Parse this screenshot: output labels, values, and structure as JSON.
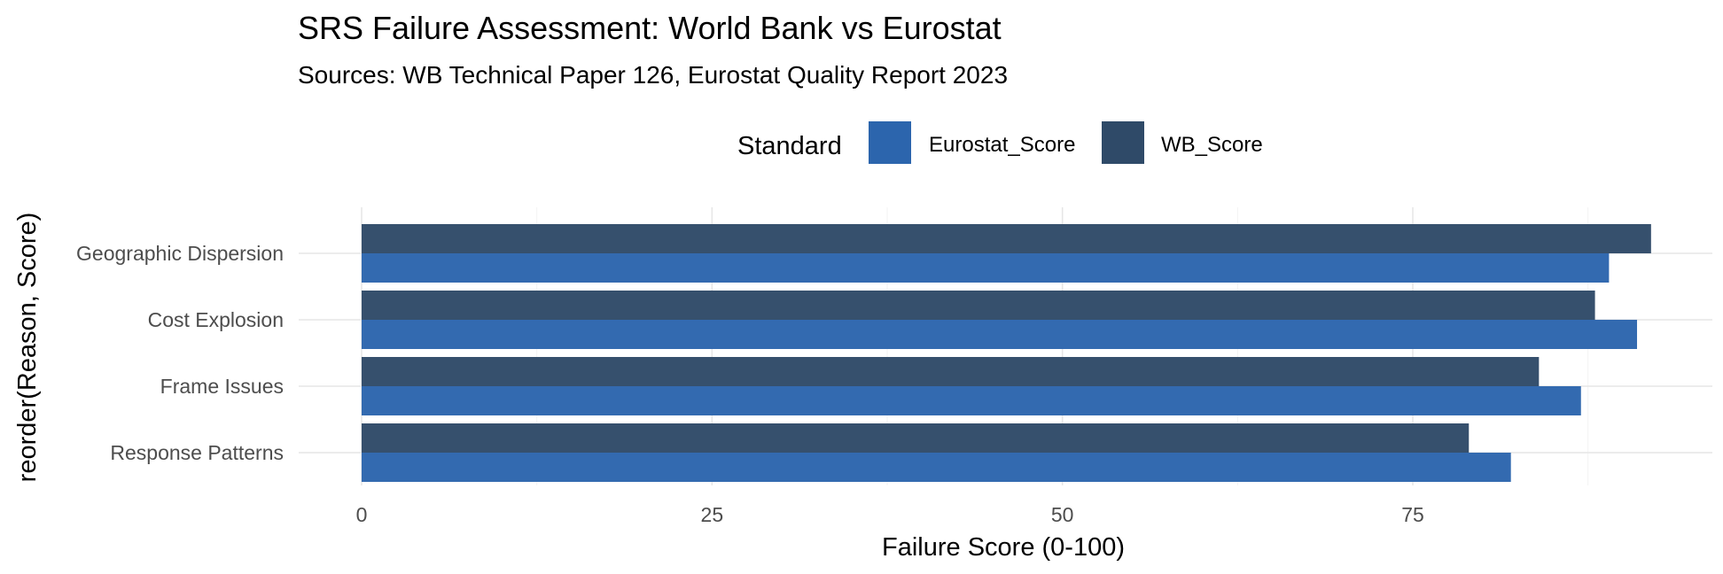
{
  "chart_data": {
    "type": "bar",
    "orientation": "horizontal",
    "title": "SRS Failure Assessment: World Bank vs Eurostat",
    "subtitle": "Sources: WB Technical Paper 126, Eurostat Quality Report 2023",
    "xlabel": "Failure Score (0-100)",
    "ylabel": "reorder(Reason, Score)",
    "xlim": [
      0,
      96
    ],
    "x_ticks": [
      "0",
      "25",
      "50",
      "75"
    ],
    "categories": [
      "Response Patterns",
      "Frame Issues",
      "Cost Explosion",
      "Geographic Dispersion"
    ],
    "series": [
      {
        "name": "Eurostat_Score",
        "color": "#2c65ad",
        "values": [
          82,
          87,
          91,
          89
        ]
      },
      {
        "name": "WB_Score",
        "color": "#2f4a68",
        "values": [
          79,
          84,
          88,
          92
        ]
      }
    ],
    "legend": {
      "title": "Standard",
      "position": "top"
    },
    "grid": true
  }
}
